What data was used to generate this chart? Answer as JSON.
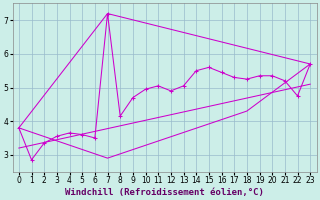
{
  "background_color": "#cceee8",
  "grid_color": "#99bbcc",
  "line_color": "#cc00cc",
  "xlabel": "Windchill (Refroidissement éolien,°C)",
  "xlabel_fontsize": 6.5,
  "xlim": [
    -0.5,
    23.5
  ],
  "ylim": [
    2.5,
    7.5
  ],
  "yticks": [
    3,
    4,
    5,
    6,
    7
  ],
  "xticks": [
    0,
    1,
    2,
    3,
    4,
    5,
    6,
    7,
    8,
    9,
    10,
    11,
    12,
    13,
    14,
    15,
    16,
    17,
    18,
    19,
    20,
    21,
    22,
    23
  ],
  "tick_fontsize": 5.5,
  "series1_x": [
    0,
    1,
    2,
    3,
    4,
    5,
    6,
    7,
    8,
    9,
    10,
    11,
    12,
    13,
    14,
    15,
    16,
    17,
    18,
    19,
    20,
    21,
    22,
    23
  ],
  "series1_y": [
    3.8,
    2.85,
    3.35,
    3.55,
    3.65,
    3.6,
    3.5,
    7.2,
    4.15,
    4.7,
    4.95,
    5.05,
    4.9,
    5.05,
    5.5,
    5.6,
    5.45,
    5.3,
    5.25,
    5.35,
    5.35,
    5.2,
    4.75,
    5.7
  ],
  "series2_x": [
    0,
    7,
    18,
    23
  ],
  "series2_y": [
    3.8,
    2.9,
    4.3,
    5.7
  ],
  "series3_x": [
    0,
    7,
    23
  ],
  "series3_y": [
    3.8,
    7.2,
    5.7
  ],
  "series4_x": [
    0,
    23
  ],
  "series4_y": [
    3.2,
    5.1
  ]
}
